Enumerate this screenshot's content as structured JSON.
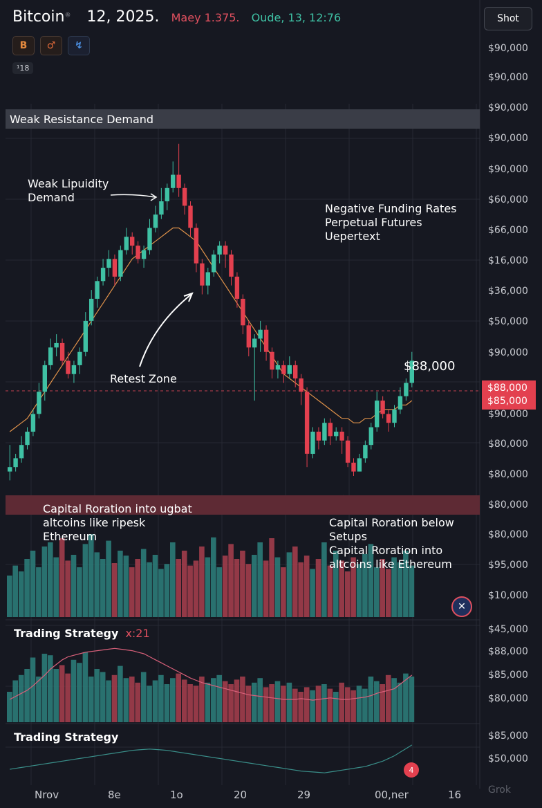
{
  "header": {
    "symbol": "Bitcoin",
    "symbol_sup": "®",
    "date": "12, 2025.",
    "mid_text": "Maey 1.375.",
    "close_text": "Oude, 13, 12:76",
    "icons": [
      "bitcoin-icon",
      "compare-icon",
      "replay-icon"
    ],
    "icon_glyphs": [
      "B",
      "♂",
      "↯"
    ],
    "badge": "¹18",
    "shot_button": "Shot"
  },
  "colors": {
    "background": "#161821",
    "up": "#3fc1a4",
    "down": "#e3404f",
    "ma": "#e0924a",
    "grid": "#262934"
  },
  "bands": {
    "top_label": "Weak Resistance Demand",
    "bottom_label": ""
  },
  "annotations": {
    "weak_liquidity": "Weak Lipuidity\nDemand",
    "negative_funding": "Negative Funding Rates\nPerpetual Futures\nUepertext",
    "retest": "Retest Zone",
    "price_tag": "$88,000",
    "capital_left": "Capital Roration into ugbat\naltcoins like ripesk\nEthereum",
    "capital_right": "Capital Roration below\nSetups\nCapital Roration into\naltcoins like Ethereum"
  },
  "y_axis_labels": [
    "$90,000",
    "$90,000",
    "$90,000",
    "$90,000",
    "$90,000",
    "$60,000",
    "$66,000",
    "$16,000",
    "$36,000",
    "$50,000",
    "$90,000",
    "$90,000",
    "$80,000",
    "$80,000",
    "$80,000",
    "$80,000",
    "$95,000",
    "$10,000",
    "$45,000",
    "$88,000",
    "$85,000",
    "$80,000",
    "$85,000",
    "$50,000"
  ],
  "price_highlight": [
    "$88,000",
    "$85,000"
  ],
  "x_axis_labels": [
    "Nrov",
    "8e",
    "1o",
    "20",
    "29",
    "00,ner",
    "16"
  ],
  "panels": {
    "strategy1_title": "Trading Strategy",
    "strategy1_value": "x:21",
    "strategy2_title": "Trading Strategy"
  },
  "alert_icon": "4",
  "settings_glyph": "✕",
  "watermark": "Grok",
  "chart_data": {
    "type": "candlestick",
    "candles": [
      [
        6,
        7,
        12,
        4
      ],
      [
        7,
        9,
        10,
        6
      ],
      [
        9,
        12,
        14,
        8
      ],
      [
        12,
        15,
        16,
        11
      ],
      [
        15,
        19,
        20,
        14
      ],
      [
        19,
        24,
        26,
        18
      ],
      [
        24,
        30,
        31,
        22
      ],
      [
        30,
        34,
        36,
        29
      ],
      [
        34,
        35,
        37,
        32
      ],
      [
        35,
        31,
        36,
        30
      ],
      [
        31,
        28,
        33,
        27
      ],
      [
        28,
        30,
        31,
        26
      ],
      [
        30,
        33,
        34,
        28
      ],
      [
        33,
        40,
        42,
        32
      ],
      [
        40,
        45,
        47,
        39
      ],
      [
        45,
        49,
        50,
        43
      ],
      [
        49,
        52,
        54,
        48
      ],
      [
        52,
        54,
        56,
        50
      ],
      [
        54,
        50,
        55,
        48
      ],
      [
        50,
        56,
        57,
        49
      ],
      [
        56,
        59,
        61,
        55
      ],
      [
        59,
        57,
        60,
        55
      ],
      [
        57,
        54,
        58,
        53
      ],
      [
        54,
        56,
        57,
        52
      ],
      [
        56,
        61,
        63,
        55
      ],
      [
        61,
        64,
        66,
        60
      ],
      [
        64,
        67,
        70,
        63
      ],
      [
        67,
        70,
        71,
        65
      ],
      [
        70,
        73,
        76,
        69
      ],
      [
        73,
        70,
        80,
        68
      ],
      [
        70,
        66,
        71,
        64
      ],
      [
        66,
        61,
        67,
        59
      ],
      [
        61,
        53,
        62,
        51
      ],
      [
        53,
        48,
        54,
        46
      ],
      [
        48,
        51,
        52,
        46
      ],
      [
        51,
        55,
        56,
        50
      ],
      [
        55,
        57,
        58,
        53
      ],
      [
        57,
        55,
        58,
        52
      ],
      [
        55,
        50,
        56,
        48
      ],
      [
        50,
        45,
        51,
        43
      ],
      [
        45,
        39,
        46,
        37
      ],
      [
        39,
        34,
        40,
        32
      ],
      [
        34,
        36,
        37,
        22
      ],
      [
        36,
        38,
        40,
        33
      ],
      [
        38,
        33,
        39,
        31
      ],
      [
        33,
        29,
        34,
        27
      ],
      [
        29,
        30,
        31,
        27
      ],
      [
        30,
        28,
        31,
        26
      ],
      [
        28,
        30,
        32,
        27
      ],
      [
        30,
        27,
        31,
        25
      ],
      [
        27,
        24,
        28,
        21
      ],
      [
        24,
        10,
        25,
        7
      ],
      [
        10,
        15,
        16,
        9
      ],
      [
        15,
        13,
        16,
        11
      ],
      [
        13,
        17,
        18,
        12
      ],
      [
        17,
        14,
        18,
        12
      ],
      [
        14,
        15,
        16,
        13
      ],
      [
        15,
        13,
        16,
        10
      ],
      [
        13,
        8,
        14,
        7
      ],
      [
        8,
        6,
        9,
        5
      ],
      [
        6,
        9,
        10,
        6
      ],
      [
        9,
        12,
        13,
        8
      ],
      [
        12,
        16,
        17,
        11
      ],
      [
        16,
        22,
        24,
        15
      ],
      [
        22,
        19,
        23,
        18
      ],
      [
        19,
        17,
        20,
        15
      ],
      [
        17,
        20,
        21,
        16
      ],
      [
        20,
        23,
        25,
        19
      ],
      [
        23,
        26,
        27,
        22
      ],
      [
        26,
        31,
        33,
        25
      ]
    ],
    "ma": [
      15,
      16,
      17,
      18,
      20,
      22,
      24,
      26,
      28,
      30,
      32,
      34,
      36,
      38,
      40,
      42,
      44,
      46,
      48,
      50,
      52,
      54,
      55,
      56,
      57,
      58,
      59,
      60,
      61,
      61,
      60,
      59,
      58,
      56,
      54,
      52,
      50,
      48,
      46,
      44,
      42,
      40,
      38,
      36,
      34,
      32,
      30,
      28,
      27,
      26,
      25,
      24,
      23,
      22,
      21,
      20,
      19,
      18,
      18,
      17,
      17,
      18,
      18,
      19,
      20,
      20,
      20,
      21,
      21,
      22
    ],
    "volume": [
      50,
      62,
      55,
      70,
      80,
      60,
      85,
      90,
      72,
      95,
      68,
      75,
      60,
      88,
      100,
      78,
      70,
      92,
      65,
      80,
      74,
      60,
      70,
      82,
      66,
      75,
      58,
      64,
      90,
      70,
      80,
      62,
      68,
      85,
      72,
      96,
      60,
      74,
      88,
      70,
      80,
      64,
      75,
      90,
      68,
      95,
      72,
      60,
      78,
      85,
      66,
      74,
      58,
      70,
      90,
      62,
      80,
      68,
      55,
      72,
      64,
      76,
      88,
      60,
      70,
      58,
      72,
      66,
      80,
      62
    ],
    "strategy_volume": [
      40,
      55,
      62,
      70,
      85,
      60,
      90,
      88,
      70,
      75,
      64,
      82,
      78,
      92,
      60,
      70,
      66,
      55,
      62,
      74,
      58,
      60,
      52,
      66,
      48,
      55,
      62,
      50,
      58,
      64,
      56,
      50,
      48,
      60,
      52,
      58,
      62,
      54,
      50,
      56,
      60,
      48,
      52,
      58,
      46,
      50,
      54,
      48,
      52,
      44,
      40,
      46,
      42,
      48,
      50,
      44,
      40,
      52,
      46,
      42,
      48,
      44,
      60,
      54,
      50,
      62,
      58,
      52,
      64,
      60
    ],
    "strategy_line": [
      30,
      34,
      38,
      42,
      48,
      55,
      62,
      70,
      76,
      82,
      86,
      88,
      90,
      92,
      93,
      94,
      95,
      96,
      97,
      96,
      95,
      94,
      92,
      90,
      86,
      82,
      78,
      74,
      70,
      66,
      62,
      58,
      55,
      52,
      50,
      48,
      46,
      44,
      42,
      40,
      38,
      36,
      35,
      34,
      33,
      32,
      31,
      30,
      30,
      30,
      31,
      30,
      29,
      30,
      31,
      32,
      31,
      30,
      30,
      31,
      32,
      33,
      35,
      38,
      40,
      42,
      44,
      50,
      56,
      62
    ],
    "trend_line": [
      20,
      22,
      24,
      26,
      28,
      30,
      32,
      34,
      36,
      38,
      40,
      42,
      44,
      46,
      48,
      50,
      52,
      54,
      56,
      58,
      60,
      62,
      63,
      64,
      65,
      64,
      63,
      62,
      60,
      58,
      56,
      54,
      52,
      50,
      48,
      46,
      44,
      42,
      40,
      38,
      36,
      34,
      32,
      30,
      28,
      26,
      24,
      22,
      20,
      18,
      16,
      15,
      14,
      13,
      12,
      14,
      16,
      18,
      20,
      22,
      24,
      26,
      30,
      34,
      38,
      44,
      50,
      58,
      66,
      74
    ]
  }
}
